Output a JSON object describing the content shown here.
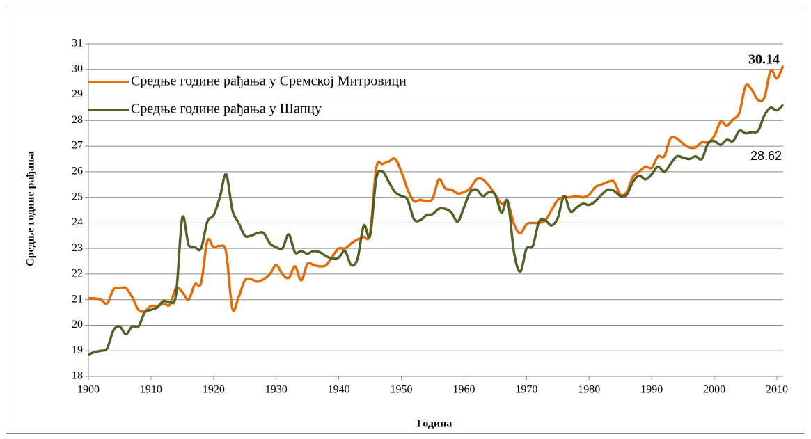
{
  "chart_data": {
    "type": "line",
    "xlabel": "Година",
    "ylabel": "Средње године рађања",
    "x": [
      1900,
      1901,
      1902,
      1903,
      1904,
      1905,
      1906,
      1907,
      1908,
      1909,
      1910,
      1911,
      1912,
      1913,
      1914,
      1915,
      1916,
      1917,
      1918,
      1919,
      1920,
      1921,
      1922,
      1923,
      1924,
      1925,
      1926,
      1927,
      1928,
      1929,
      1930,
      1931,
      1932,
      1933,
      1934,
      1935,
      1936,
      1937,
      1938,
      1939,
      1940,
      1941,
      1942,
      1943,
      1944,
      1945,
      1946,
      1947,
      1948,
      1949,
      1950,
      1951,
      1952,
      1953,
      1954,
      1955,
      1956,
      1957,
      1958,
      1959,
      1960,
      1961,
      1962,
      1963,
      1964,
      1965,
      1966,
      1967,
      1968,
      1969,
      1970,
      1971,
      1972,
      1973,
      1974,
      1975,
      1976,
      1977,
      1978,
      1979,
      1980,
      1981,
      1982,
      1983,
      1984,
      1985,
      1986,
      1987,
      1988,
      1989,
      1990,
      1991,
      1992,
      1993,
      1994,
      1995,
      1996,
      1997,
      1998,
      1999,
      2000,
      2001,
      2002,
      2003,
      2004,
      2005,
      2006,
      2007,
      2008,
      2009,
      2010,
      2011
    ],
    "series": [
      {
        "name": "Средње године рађања у Сремској Митровици",
        "color": "#e36c09",
        "values": [
          21.05,
          21.05,
          21.0,
          20.85,
          21.4,
          21.45,
          21.45,
          21.1,
          20.6,
          20.55,
          20.75,
          20.75,
          20.85,
          20.8,
          21.45,
          21.3,
          21.0,
          21.6,
          21.65,
          23.3,
          23.05,
          23.1,
          22.85,
          20.65,
          21.1,
          21.75,
          21.8,
          21.7,
          21.8,
          22.0,
          22.35,
          22.0,
          21.85,
          22.3,
          21.75,
          22.4,
          22.35,
          22.3,
          22.35,
          22.7,
          23.0,
          23.0,
          23.2,
          23.35,
          23.45,
          23.6,
          26.15,
          26.3,
          26.4,
          26.5,
          26.0,
          25.3,
          24.85,
          24.9,
          24.85,
          24.95,
          25.7,
          25.35,
          25.3,
          25.15,
          25.2,
          25.35,
          25.7,
          25.7,
          25.45,
          25.1,
          24.75,
          24.8,
          23.95,
          23.6,
          23.95,
          24.0,
          24.0,
          24.1,
          24.5,
          24.9,
          25.0,
          25.0,
          25.05,
          25.0,
          25.1,
          25.4,
          25.5,
          25.6,
          25.6,
          25.1,
          25.2,
          25.8,
          26.0,
          26.2,
          26.15,
          26.6,
          26.6,
          27.3,
          27.3,
          27.1,
          26.95,
          26.95,
          27.15,
          27.15,
          27.4,
          27.95,
          27.8,
          28.05,
          28.3,
          29.35,
          29.2,
          28.8,
          28.9,
          29.95,
          29.65,
          30.14
        ]
      },
      {
        "name": "Средње године рађања у Шапцу",
        "color": "#4f6228",
        "values": [
          18.85,
          18.95,
          19.0,
          19.1,
          19.8,
          19.95,
          19.65,
          19.95,
          19.95,
          20.5,
          20.6,
          20.7,
          20.95,
          20.9,
          21.2,
          24.2,
          23.15,
          23.05,
          23.0,
          24.05,
          24.3,
          25.0,
          25.9,
          24.5,
          24.0,
          23.5,
          23.5,
          23.6,
          23.6,
          23.2,
          23.05,
          23.0,
          23.55,
          22.85,
          22.9,
          22.8,
          22.9,
          22.85,
          22.7,
          22.6,
          22.65,
          22.9,
          22.35,
          22.6,
          23.9,
          23.5,
          25.75,
          26.0,
          25.6,
          25.2,
          25.05,
          24.9,
          24.15,
          24.1,
          24.3,
          24.35,
          24.55,
          24.55,
          24.4,
          24.05,
          24.6,
          25.2,
          25.3,
          25.05,
          25.2,
          25.1,
          24.4,
          24.85,
          22.85,
          22.1,
          23.0,
          23.1,
          24.05,
          24.1,
          23.9,
          24.2,
          25.05,
          24.45,
          24.6,
          24.75,
          24.7,
          24.85,
          25.1,
          25.3,
          25.25,
          25.05,
          25.1,
          25.6,
          25.85,
          25.7,
          25.9,
          26.2,
          26.0,
          26.3,
          26.6,
          26.55,
          26.5,
          26.6,
          26.5,
          27.1,
          27.2,
          27.05,
          27.25,
          27.2,
          27.6,
          27.5,
          27.55,
          27.6,
          28.2,
          28.5,
          28.4,
          28.62
        ]
      }
    ],
    "xlim": [
      1900,
      2011
    ],
    "xticks": [
      1900,
      1910,
      1920,
      1930,
      1940,
      1950,
      1960,
      1970,
      1980,
      1990,
      2000,
      2010
    ],
    "ylim": [
      18,
      31
    ],
    "yticks": [
      18,
      19,
      20,
      21,
      22,
      23,
      24,
      25,
      26,
      27,
      28,
      29,
      30,
      31
    ],
    "grid": true,
    "legend": "upper left"
  }
}
